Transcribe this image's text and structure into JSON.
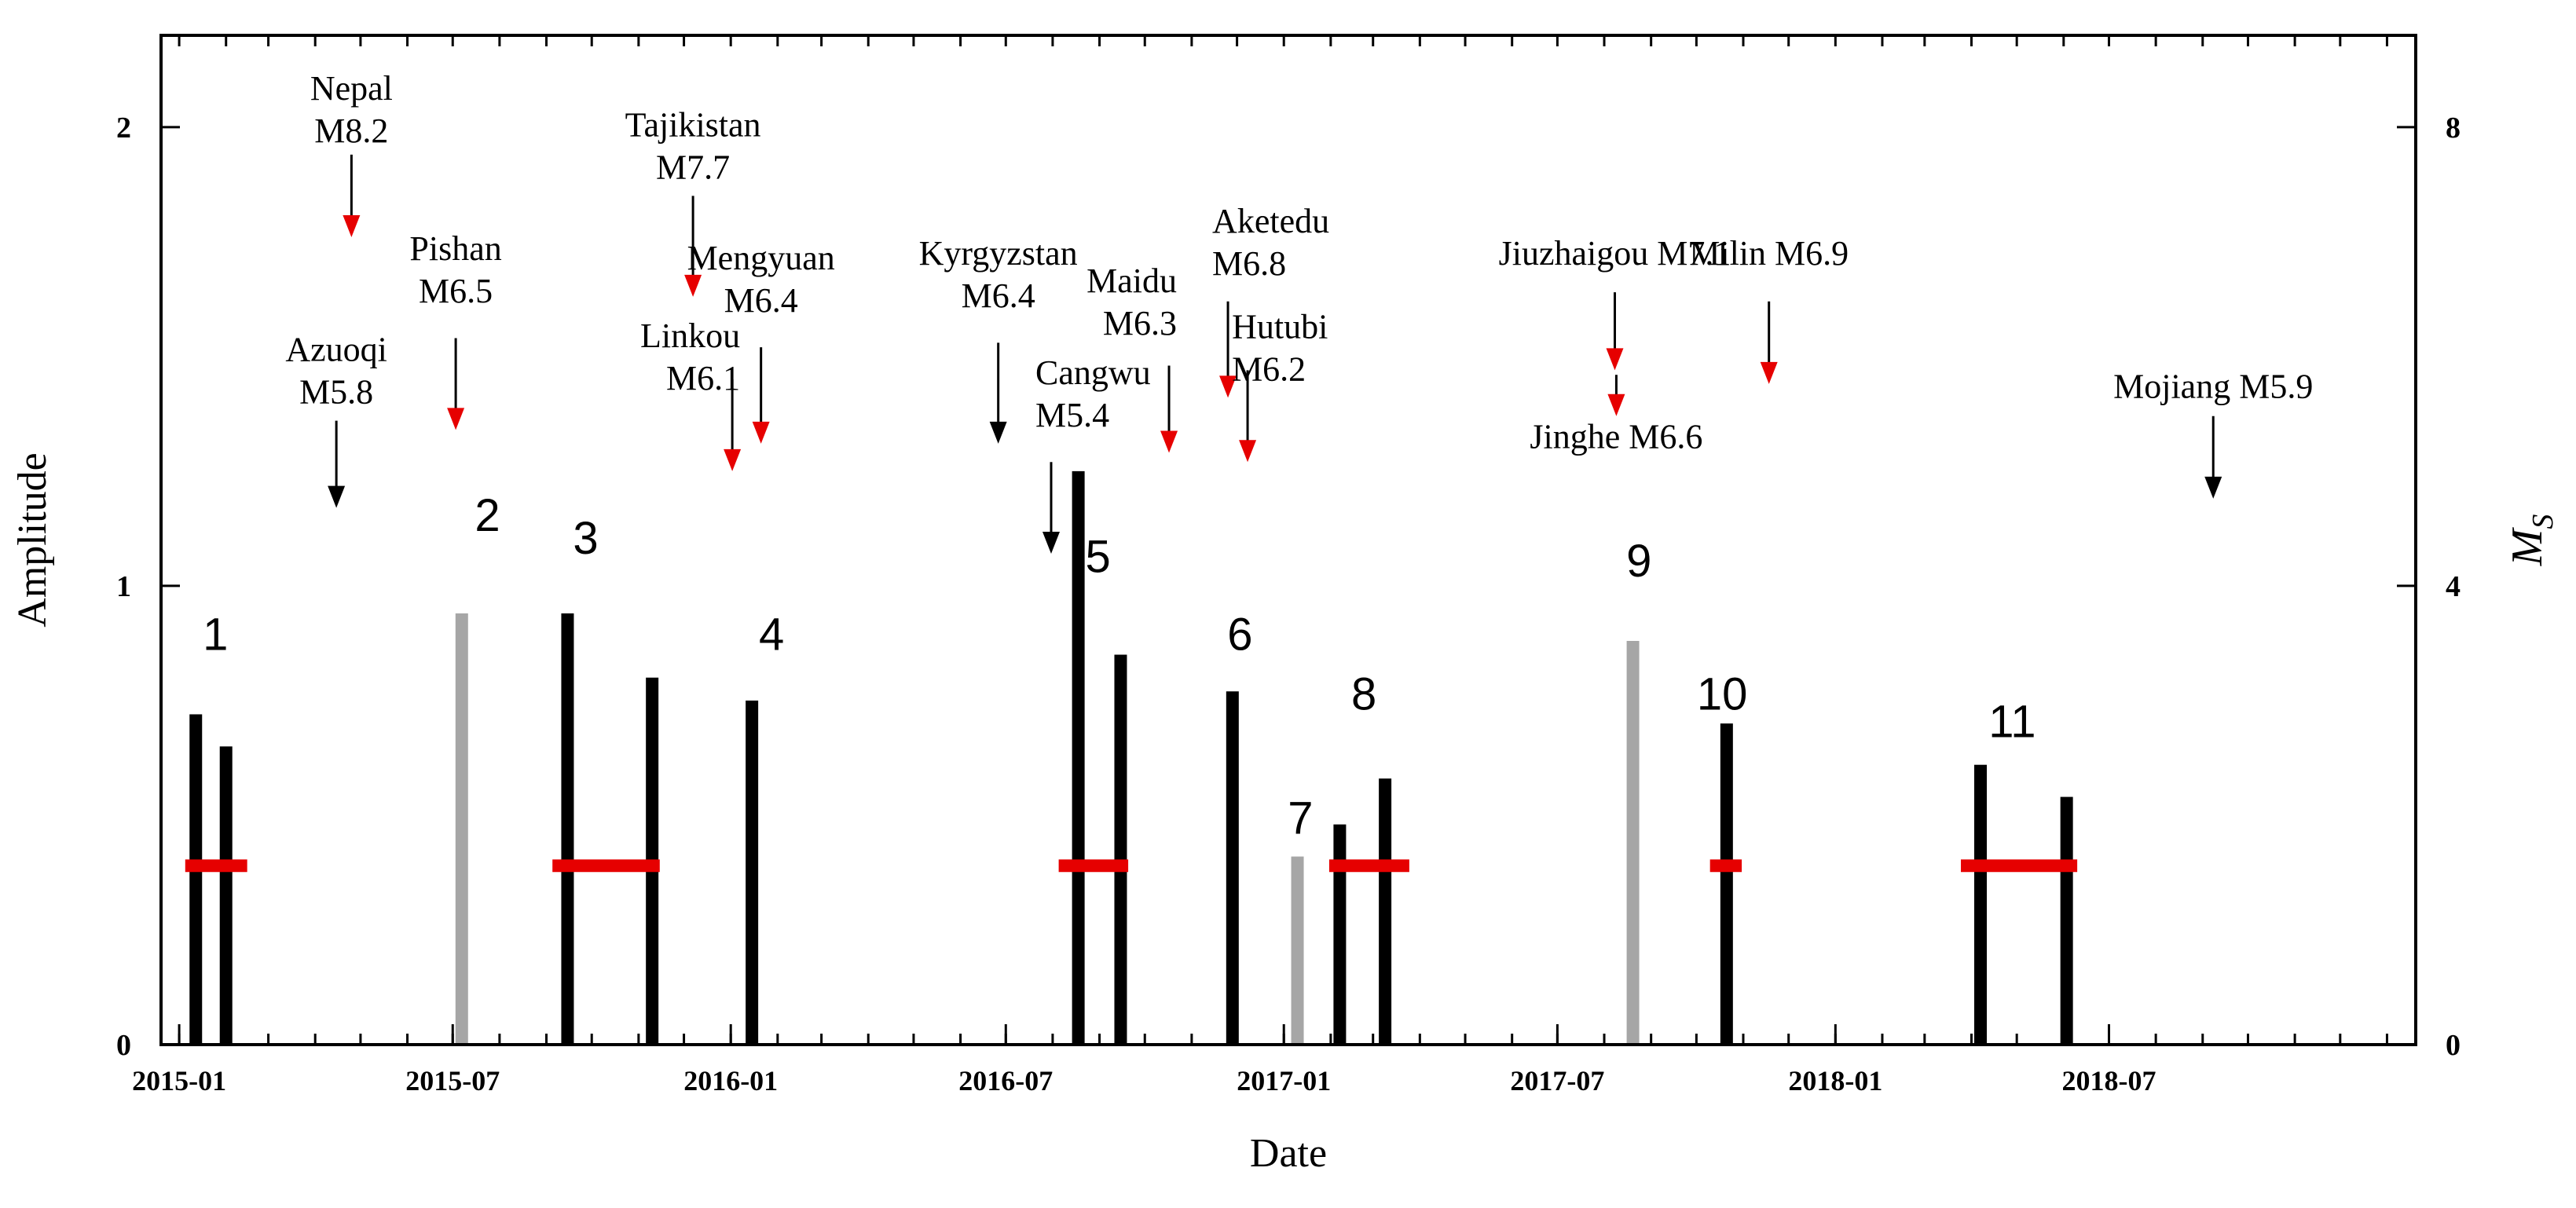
{
  "chart_data": {
    "type": "bar",
    "xlabel": "Date",
    "ylabel": "Amplitude",
    "y2label": "M",
    "y2label_sub": "S",
    "ylim": [
      0,
      2.2
    ],
    "y2lim": [
      0,
      8.8
    ],
    "yticks": [
      {
        "v": 0,
        "label": "0"
      },
      {
        "v": 1,
        "label": "1"
      },
      {
        "v": 2,
        "label": "2"
      }
    ],
    "y2ticks": [
      {
        "v": 0,
        "label": "0"
      },
      {
        "v": 4,
        "label": "4"
      },
      {
        "v": 8,
        "label": "8"
      }
    ],
    "xlim": [
      "2014-12-20",
      "2019-01-20"
    ],
    "xticks": [
      {
        "date": "2015-01-01",
        "label": "2015-01"
      },
      {
        "date": "2015-07-01",
        "label": "2015-07"
      },
      {
        "date": "2016-01-01",
        "label": "2016-01"
      },
      {
        "date": "2016-07-01",
        "label": "2016-07"
      },
      {
        "date": "2017-01-01",
        "label": "2017-01"
      },
      {
        "date": "2017-07-01",
        "label": "2017-07"
      },
      {
        "date": "2018-01-01",
        "label": "2018-01"
      },
      {
        "date": "2018-07-01",
        "label": "2018-07"
      }
    ],
    "minor_tick_months": 1,
    "colors": {
      "anomaly_bar": "#000000",
      "gray_bar": "#a6a6a6",
      "window": "#e60000",
      "red_arrow": "#e60000",
      "black_arrow": "#000000"
    },
    "bars": [
      {
        "date": "2015-01-12",
        "amplitude": 0.72,
        "color": "black"
      },
      {
        "date": "2015-02-01",
        "amplitude": 0.65,
        "color": "black"
      },
      {
        "date": "2015-07-07",
        "amplitude": 0.94,
        "color": "gray"
      },
      {
        "date": "2015-09-15",
        "amplitude": 0.94,
        "color": "black"
      },
      {
        "date": "2015-11-10",
        "amplitude": 0.8,
        "color": "black"
      },
      {
        "date": "2016-01-15",
        "amplitude": 0.75,
        "color": "black"
      },
      {
        "date": "2016-08-18",
        "amplitude": 1.25,
        "color": "black"
      },
      {
        "date": "2016-09-15",
        "amplitude": 0.85,
        "color": "black"
      },
      {
        "date": "2016-11-28",
        "amplitude": 0.77,
        "color": "black"
      },
      {
        "date": "2017-01-10",
        "amplitude": 0.41,
        "color": "gray"
      },
      {
        "date": "2017-02-07",
        "amplitude": 0.48,
        "color": "black"
      },
      {
        "date": "2017-03-09",
        "amplitude": 0.58,
        "color": "black"
      },
      {
        "date": "2017-08-20",
        "amplitude": 0.88,
        "color": "gray"
      },
      {
        "date": "2017-10-21",
        "amplitude": 0.7,
        "color": "black"
      },
      {
        "date": "2018-04-07",
        "amplitude": 0.61,
        "color": "black"
      },
      {
        "date": "2018-06-03",
        "amplitude": 0.54,
        "color": "black"
      }
    ],
    "windows": [
      {
        "start": "2015-01-05",
        "end": "2015-02-15",
        "amplitude": 0.39
      },
      {
        "start": "2015-09-05",
        "end": "2015-11-15",
        "amplitude": 0.39
      },
      {
        "start": "2016-08-05",
        "end": "2016-09-20",
        "amplitude": 0.39
      },
      {
        "start": "2017-01-31",
        "end": "2017-03-25",
        "amplitude": 0.39
      },
      {
        "start": "2017-10-10",
        "end": "2017-10-31",
        "amplitude": 0.39
      },
      {
        "start": "2018-03-25",
        "end": "2018-06-10",
        "amplitude": 0.39
      }
    ],
    "group_labels": [
      {
        "label": "1",
        "date": "2015-01-25",
        "amplitude": 0.86
      },
      {
        "label": "2",
        "date": "2015-07-24",
        "amplitude": 1.12
      },
      {
        "label": "3",
        "date": "2015-09-27",
        "amplitude": 1.07
      },
      {
        "label": "4",
        "date": "2016-01-28",
        "amplitude": 0.86
      },
      {
        "label": "5",
        "date": "2016-08-31",
        "amplitude": 1.03
      },
      {
        "label": "6",
        "date": "2016-12-03",
        "amplitude": 0.86
      },
      {
        "label": "7",
        "date": "2017-01-12",
        "amplitude": 0.46
      },
      {
        "label": "8",
        "date": "2017-02-23",
        "amplitude": 0.73
      },
      {
        "label": "9",
        "date": "2017-08-24",
        "amplitude": 1.02
      },
      {
        "label": "10",
        "date": "2017-10-18",
        "amplitude": 0.73
      },
      {
        "label": "11",
        "date": "2018-04-28",
        "amplitude": 0.67
      }
    ],
    "earthquakes": [
      {
        "name": "Nepal",
        "mag_text": "M8.2",
        "lines": [
          "Nepal",
          "M8.2"
        ],
        "date": "2015-04-25",
        "label_amp": 2.06,
        "top_amp": 1.94,
        "tip_amp": 1.76,
        "color": "red",
        "align": "middle"
      },
      {
        "name": "Azuoqi",
        "mag_text": "M5.8",
        "lines": [
          "Azuoqi",
          "M5.8"
        ],
        "date": "2015-04-15",
        "label_amp": 1.49,
        "top_amp": 1.36,
        "tip_amp": 1.17,
        "color": "black",
        "align": "middle"
      },
      {
        "name": "Pishan",
        "mag_text": "M6.5",
        "lines": [
          "Pishan",
          "M6.5"
        ],
        "date": "2015-07-03",
        "label_amp": 1.71,
        "top_amp": 1.54,
        "tip_amp": 1.34,
        "color": "red",
        "align": "middle"
      },
      {
        "name": "Tajikistan",
        "mag_text": "M7.7",
        "lines": [
          "Tajikistan",
          "M7.7"
        ],
        "date": "2015-12-07",
        "label_amp": 1.98,
        "top_amp": 1.85,
        "tip_amp": 1.63,
        "color": "red",
        "align": "middle"
      },
      {
        "name": "Linkou",
        "mag_text": "M6.1",
        "lines": [
          "Linkou",
          "M6.1"
        ],
        "date": "2016-01-02",
        "label_amp": 1.52,
        "top_amp": 1.45,
        "tip_amp": 1.25,
        "color": "red",
        "align": "end"
      },
      {
        "name": "Mengyuan",
        "mag_text": "M6.4",
        "lines": [
          "Mengyuan",
          "M6.4"
        ],
        "date": "2016-01-21",
        "label_amp": 1.69,
        "top_amp": 1.52,
        "tip_amp": 1.31,
        "color": "red",
        "align": "middle"
      },
      {
        "name": "Kyrgyzstan",
        "mag_text": "M6.4",
        "lines": [
          "Kyrgyzstan",
          "M6.4"
        ],
        "date": "2016-06-26",
        "label_amp": 1.7,
        "top_amp": 1.53,
        "tip_amp": 1.31,
        "color": "black",
        "align": "middle"
      },
      {
        "name": "Cangwu",
        "mag_text": "M5.4",
        "lines": [
          "Cangwu",
          "M5.4"
        ],
        "date": "2016-07-31",
        "label_amp": 1.44,
        "top_amp": 1.27,
        "tip_amp": 1.07,
        "color": "black",
        "align": "start"
      },
      {
        "name": "Maidu",
        "mag_text": "M6.3",
        "lines": [
          "Maidu",
          "M6.3"
        ],
        "date": "2016-10-17",
        "label_amp": 1.64,
        "top_amp": 1.48,
        "tip_amp": 1.29,
        "color": "red",
        "align": "end"
      },
      {
        "name": "Aketedu",
        "mag_text": "M6.8",
        "lines": [
          "Aketedu",
          "M6.8"
        ],
        "date": "2016-11-25",
        "label_amp": 1.77,
        "top_amp": 1.62,
        "tip_amp": 1.41,
        "color": "red",
        "align": "start"
      },
      {
        "name": "Hutubi",
        "mag_text": "M6.2",
        "lines": [
          "Hutubi",
          "M6.2"
        ],
        "date": "2016-12-08",
        "label_amp": 1.54,
        "top_amp": 1.47,
        "tip_amp": 1.27,
        "color": "red",
        "align": "start"
      },
      {
        "name": "Jiuzhaigou",
        "mag_text": "M7.1",
        "lines": [
          "Jiuzhaigou M7.1"
        ],
        "date": "2017-08-08",
        "label_amp": 1.7,
        "top_amp": 1.64,
        "tip_amp": 1.47,
        "color": "red",
        "align": "middle"
      },
      {
        "name": "Jinghe",
        "mag_text": "M6.6",
        "lines": [
          "Jinghe M6.6"
        ],
        "date": "2017-08-09",
        "label_amp": 1.3,
        "top_amp": 1.46,
        "tip_amp": 1.37,
        "color": "red",
        "align": "middle"
      },
      {
        "name": "Milin",
        "mag_text": "M6.9",
        "lines": [
          "Milin M6.9"
        ],
        "date": "2017-11-18",
        "label_amp": 1.7,
        "top_amp": 1.62,
        "tip_amp": 1.44,
        "color": "red",
        "align": "middle"
      },
      {
        "name": "Mojiang",
        "mag_text": "M5.9",
        "lines": [
          "Mojiang M5.9"
        ],
        "date": "2018-09-08",
        "label_amp": 1.41,
        "top_amp": 1.37,
        "tip_amp": 1.19,
        "color": "black",
        "align": "middle"
      }
    ]
  }
}
